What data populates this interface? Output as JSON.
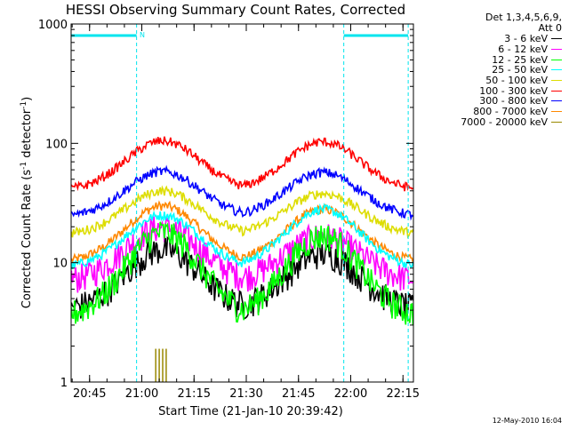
{
  "chart_data": {
    "type": "line",
    "title": "HESSI Observing Summary Count Rates, Corrected",
    "xlabel": "Start Time (21-Jan-10 20:39:42)",
    "ylabel": "Corrected Count Rate (s",
    "ylabel_sup1": "-1",
    "ylabel_mid": " detector",
    "ylabel_sup2": "-1",
    "ylabel_end": ")",
    "y_scale": "log",
    "ylim": [
      1,
      1000
    ],
    "xlim": [
      "20:39:42",
      "22:18:00"
    ],
    "x_ticks": [
      "20:45",
      "21:00",
      "21:15",
      "21:30",
      "21:45",
      "22:00",
      "22:15"
    ],
    "y_ticks": [
      "1",
      "10",
      "100",
      "1000"
    ],
    "legend_header": [
      "Det 1,3,4,5,6,9,",
      "Att 0"
    ],
    "annotation_N": "N",
    "night_intervals": [
      [
        "20:39:42",
        "20:58:30"
      ],
      [
        "21:58:00",
        "22:16:30"
      ]
    ],
    "night_flag_value": 800,
    "vlines": [
      "20:58:30",
      "21:58:00",
      "22:16:30"
    ],
    "series": [
      {
        "name": "3 - 6 keV",
        "color": "#000000",
        "baseline": 4,
        "peaks": [
          13,
          12
        ]
      },
      {
        "name": "6 - 12 keV",
        "color": "#ff00ff",
        "baseline": 7,
        "peaks": [
          20,
          17
        ]
      },
      {
        "name": "12 - 25 keV",
        "color": "#00ff00",
        "baseline": 3.5,
        "peaks": [
          18,
          17
        ]
      },
      {
        "name": "25 - 50 keV",
        "color": "#00ffff",
        "baseline": 9,
        "peaks": [
          25,
          28
        ]
      },
      {
        "name": "50 - 100 keV",
        "color": "#dddd00",
        "baseline": 17,
        "peaks": [
          40,
          38
        ]
      },
      {
        "name": "100 - 300 keV",
        "color": "#ff0000",
        "baseline": 40,
        "peaks": [
          105,
          103
        ]
      },
      {
        "name": "300 - 800 keV",
        "color": "#0000ff",
        "baseline": 24,
        "peaks": [
          58,
          57
        ]
      },
      {
        "name": "800 - 7000 keV",
        "color": "#ff8800",
        "baseline": 10,
        "peaks": [
          30,
          28
        ]
      },
      {
        "name": "7000 - 20000 keV",
        "color": "#998800",
        "baseline": 1,
        "peaks": [
          1.9,
          1
        ]
      }
    ],
    "peak_times": [
      "21:06:00",
      "21:52:00"
    ],
    "grid": false
  },
  "footer": {
    "timestamp": "12-May-2010 16:04"
  },
  "colors": {
    "axis": "#000000",
    "night_marker": "#00e5ee"
  }
}
